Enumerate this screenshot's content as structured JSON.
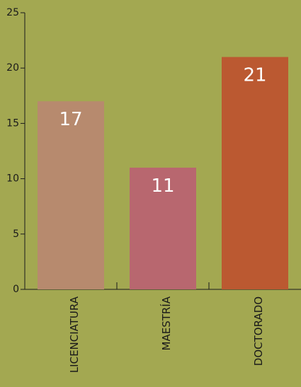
{
  "chart_data": {
    "type": "bar",
    "categories": [
      "LICENCIATURA",
      "MAESTRÍA",
      "DOCTORADO"
    ],
    "values": [
      17,
      11,
      21
    ],
    "colors": [
      "#b78a6e",
      "#b8676f",
      "#bb5931"
    ],
    "ylim": [
      0,
      25
    ],
    "yticks": [
      0,
      5,
      10,
      15,
      20,
      25
    ],
    "ytick_labels": [
      "0",
      "5",
      "10",
      "15",
      "20",
      "25"
    ],
    "value_labels": [
      "17",
      "11",
      "21"
    ],
    "background": "#a3a851",
    "grid": false,
    "legend": "none",
    "title": "",
    "xlabel": "",
    "ylabel": ""
  }
}
